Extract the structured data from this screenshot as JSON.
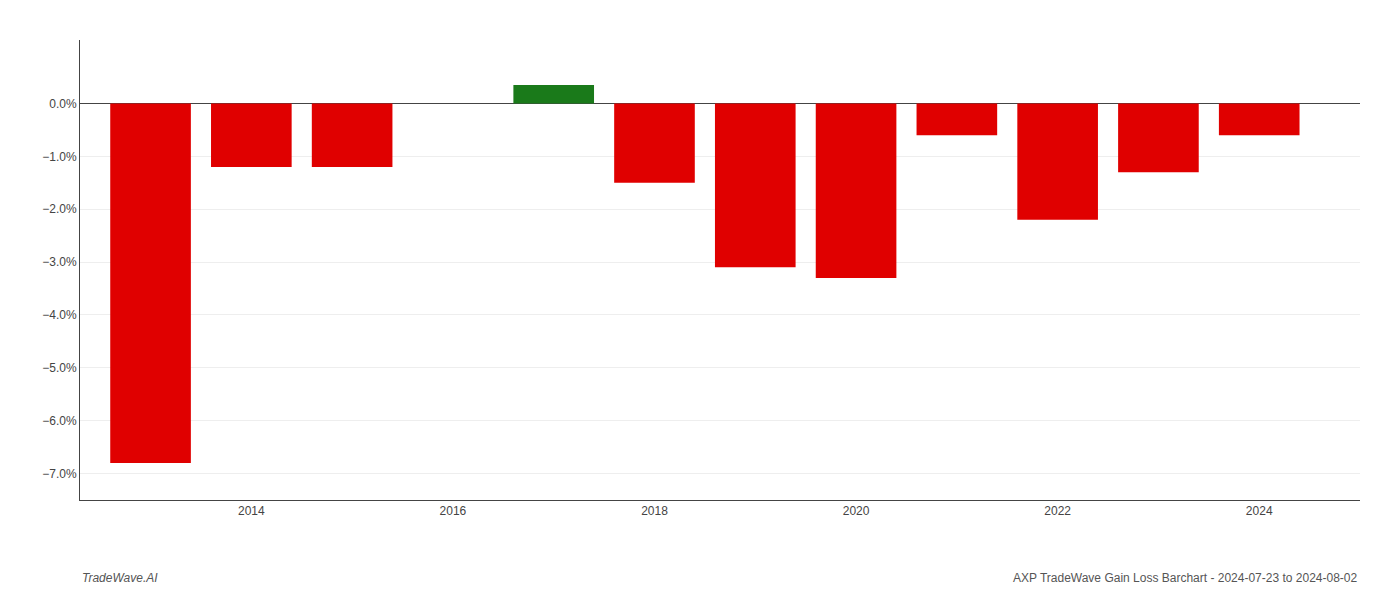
{
  "chart_data": {
    "type": "bar",
    "x": [
      2013,
      2014,
      2015,
      2017,
      2018,
      2019,
      2020,
      2021,
      2022,
      2023,
      2024
    ],
    "values": [
      -0.068,
      -0.012,
      -0.012,
      0.0035,
      -0.015,
      -0.031,
      -0.033,
      -0.006,
      -0.022,
      -0.013,
      -0.006
    ],
    "colors": [
      "#e00000",
      "#e00000",
      "#e00000",
      "#1a7a1a",
      "#e00000",
      "#e00000",
      "#e00000",
      "#e00000",
      "#e00000",
      "#e00000",
      "#e00000"
    ],
    "xlim": [
      2012.3,
      2025.0
    ],
    "xticks": [
      2014,
      2016,
      2018,
      2020,
      2022,
      2024
    ],
    "ylim": [
      -0.075,
      0.012
    ],
    "yticks": [
      {
        "value": -0.07,
        "label": "−7.0%"
      },
      {
        "value": -0.06,
        "label": "−6.0%"
      },
      {
        "value": -0.05,
        "label": "−5.0%"
      },
      {
        "value": -0.04,
        "label": "−4.0%"
      },
      {
        "value": -0.03,
        "label": "−3.0%"
      },
      {
        "value": -0.02,
        "label": "−2.0%"
      },
      {
        "value": -0.01,
        "label": "−1.0%"
      },
      {
        "value": 0.0,
        "label": "0.0%"
      }
    ],
    "grid": true,
    "annotations": [
      "TradeWave.AI",
      "AXP TradeWave Gain Loss Barchart - 2024-07-23 to 2024-08-02"
    ]
  }
}
